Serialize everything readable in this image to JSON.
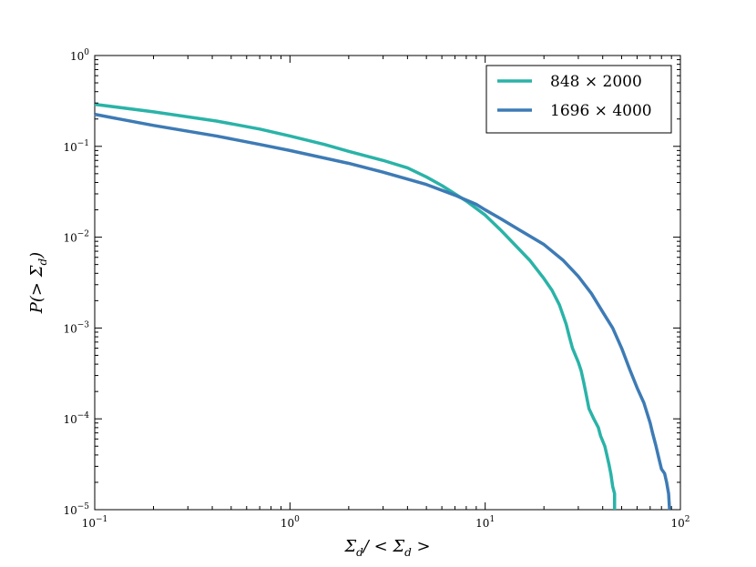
{
  "chart_data": {
    "type": "line",
    "xlabel": "Σ_d/ < Σ_d >",
    "ylabel": "P(> Σ_d)",
    "xscale": "log",
    "yscale": "log",
    "xlim": [
      0.1,
      100
    ],
    "ylim": [
      1e-05,
      1
    ],
    "x_ticks": [
      {
        "value": 0.1,
        "base": "10",
        "exp": "−1"
      },
      {
        "value": 1,
        "base": "10",
        "exp": "0"
      },
      {
        "value": 10,
        "base": "10",
        "exp": "1"
      },
      {
        "value": 100,
        "base": "10",
        "exp": "2"
      }
    ],
    "y_ticks": [
      {
        "value": 1e-05,
        "base": "10",
        "exp": "−5"
      },
      {
        "value": 0.0001,
        "base": "10",
        "exp": "−4"
      },
      {
        "value": 0.001,
        "base": "10",
        "exp": "−3"
      },
      {
        "value": 0.01,
        "base": "10",
        "exp": "−2"
      },
      {
        "value": 0.1,
        "base": "10",
        "exp": "−1"
      },
      {
        "value": 1,
        "base": "10",
        "exp": "0"
      }
    ],
    "grid": false,
    "legend_position": "top-right",
    "series": [
      {
        "name": "848 × 2000",
        "color": "#2ab3a8",
        "points": [
          [
            0.1,
            0.29
          ],
          [
            0.2,
            0.24
          ],
          [
            0.42,
            0.19
          ],
          [
            0.7,
            0.155
          ],
          [
            1,
            0.13
          ],
          [
            1.5,
            0.105
          ],
          [
            2,
            0.088
          ],
          [
            3,
            0.07
          ],
          [
            4,
            0.058
          ],
          [
            5,
            0.046
          ],
          [
            6,
            0.037
          ],
          [
            7,
            0.03
          ],
          [
            8,
            0.025
          ],
          [
            10,
            0.0175
          ],
          [
            12,
            0.012
          ],
          [
            14,
            0.0085
          ],
          [
            17,
            0.0055
          ],
          [
            20,
            0.0035
          ],
          [
            22,
            0.0026
          ],
          [
            24,
            0.0018
          ],
          [
            25,
            0.0014
          ],
          [
            26,
            0.0011
          ],
          [
            27,
            0.0008
          ],
          [
            28,
            0.0006
          ],
          [
            30,
            0.00042
          ],
          [
            31,
            0.00034
          ],
          [
            32,
            0.00025
          ],
          [
            33,
            0.00018
          ],
          [
            34,
            0.00013
          ],
          [
            36,
            0.0001
          ],
          [
            38,
            8e-05
          ],
          [
            39,
            6.5e-05
          ],
          [
            41,
            5e-05
          ],
          [
            42,
            4e-05
          ],
          [
            43,
            3.2e-05
          ],
          [
            44,
            2.5e-05
          ],
          [
            45,
            1.8e-05
          ],
          [
            46,
            1.5e-05
          ],
          [
            46,
            1e-05
          ]
        ]
      },
      {
        "name": "1696 × 4000",
        "color": "#3d7bb5",
        "points": [
          [
            0.1,
            0.225
          ],
          [
            0.2,
            0.17
          ],
          [
            0.42,
            0.13
          ],
          [
            0.7,
            0.105
          ],
          [
            1,
            0.09
          ],
          [
            2,
            0.065
          ],
          [
            3,
            0.052
          ],
          [
            5,
            0.038
          ],
          [
            7,
            0.029
          ],
          [
            9,
            0.023
          ],
          [
            10,
            0.02
          ],
          [
            12,
            0.016
          ],
          [
            15,
            0.012
          ],
          [
            20,
            0.0083
          ],
          [
            25,
            0.0056
          ],
          [
            30,
            0.0037
          ],
          [
            35,
            0.0024
          ],
          [
            40,
            0.0015
          ],
          [
            45,
            0.001
          ],
          [
            50,
            0.0006
          ],
          [
            55,
            0.00035
          ],
          [
            60,
            0.00022
          ],
          [
            65,
            0.00015
          ],
          [
            70,
            9e-05
          ],
          [
            72,
            7e-05
          ],
          [
            75,
            5e-05
          ],
          [
            78,
            3.5e-05
          ],
          [
            80,
            2.8e-05
          ],
          [
            83,
            2.5e-05
          ],
          [
            85,
            2e-05
          ],
          [
            87,
            1.5e-05
          ],
          [
            88,
            1e-05
          ]
        ]
      }
    ]
  }
}
